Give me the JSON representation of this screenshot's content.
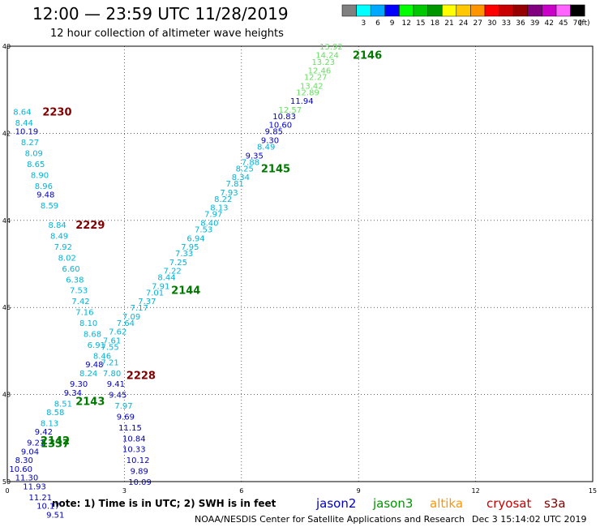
{
  "header": {
    "title": "12:00 — 23:59 UTC 11/28/2019",
    "subtitle": "12 hour collection of altimeter wave heights"
  },
  "scale": {
    "unit": "(ft)",
    "bins": [
      {
        "label": "",
        "color": "#808080"
      },
      {
        "label": "3",
        "color": "#00ffff"
      },
      {
        "label": "6",
        "color": "#00a8ff"
      },
      {
        "label": "9",
        "color": "#0000ff"
      },
      {
        "label": "12",
        "color": "#00ff00"
      },
      {
        "label": "15",
        "color": "#00c800"
      },
      {
        "label": "18",
        "color": "#009600"
      },
      {
        "label": "21",
        "color": "#ffff00"
      },
      {
        "label": "24",
        "color": "#ffc800"
      },
      {
        "label": "27",
        "color": "#ff9600"
      },
      {
        "label": "30",
        "color": "#ff0000"
      },
      {
        "label": "33",
        "color": "#c80000"
      },
      {
        "label": "36",
        "color": "#960000"
      },
      {
        "label": "39",
        "color": "#800080"
      },
      {
        "label": "42",
        "color": "#c800c8"
      },
      {
        "label": "45",
        "color": "#ff64ff"
      },
      {
        "label": "70",
        "color": "#000000"
      }
    ]
  },
  "grid": {
    "lon_labels": [
      "0",
      "3",
      "6",
      "9",
      "12",
      "15"
    ],
    "lat_labels": [
      "40",
      "42",
      "44",
      "46",
      "48",
      "50"
    ],
    "lon_range": [
      0,
      15
    ],
    "lat_range": [
      40,
      50
    ]
  },
  "colors": {
    "cyan": "#00b4d8",
    "blue": "#0000c0",
    "lightgreen": "#66e060",
    "green": "#007800",
    "darkred": "#800000"
  },
  "pass_labels": [
    {
      "text": "2146",
      "lon": 8.85,
      "lat": 40.2,
      "color": "green"
    },
    {
      "text": "2230",
      "lon": 0.9,
      "lat": 41.5,
      "color": "darkred"
    },
    {
      "text": "2145",
      "lon": 6.5,
      "lat": 42.8,
      "color": "green"
    },
    {
      "text": "2229",
      "lon": 1.75,
      "lat": 44.1,
      "color": "darkred"
    },
    {
      "text": "2144",
      "lon": 4.2,
      "lat": 45.6,
      "color": "green"
    },
    {
      "text": "2228",
      "lon": 3.05,
      "lat": 47.55,
      "color": "darkred"
    },
    {
      "text": "2143",
      "lon": 1.75,
      "lat": 48.15,
      "color": "green"
    },
    {
      "text": "2142",
      "lon": 0.85,
      "lat": 49.05,
      "color": "green"
    },
    {
      "text": "1337",
      "lon": 0.85,
      "lat": 49.12,
      "color": "green"
    }
  ],
  "observations": [
    {
      "text": "13.92",
      "lon": 8.0,
      "lat": 40.0,
      "color": "lightgreen"
    },
    {
      "text": "14.24",
      "lon": 7.9,
      "lat": 40.2,
      "color": "lightgreen"
    },
    {
      "text": "13.23",
      "lon": 7.8,
      "lat": 40.35,
      "color": "lightgreen"
    },
    {
      "text": "12.46",
      "lon": 7.7,
      "lat": 40.55,
      "color": "lightgreen"
    },
    {
      "text": "12.27",
      "lon": 7.6,
      "lat": 40.7,
      "color": "lightgreen"
    },
    {
      "text": "13.42",
      "lon": 7.5,
      "lat": 40.9,
      "color": "lightgreen"
    },
    {
      "text": "12.89",
      "lon": 7.4,
      "lat": 41.05,
      "color": "lightgreen"
    },
    {
      "text": "11.94",
      "lon": 7.25,
      "lat": 41.25,
      "color": "blue"
    },
    {
      "text": "12.57",
      "lon": 6.95,
      "lat": 41.45,
      "color": "lightgreen"
    },
    {
      "text": "10.83",
      "lon": 6.8,
      "lat": 41.6,
      "color": "blue"
    },
    {
      "text": "10.60",
      "lon": 6.7,
      "lat": 41.8,
      "color": "blue"
    },
    {
      "text": "9.85",
      "lon": 6.6,
      "lat": 41.95,
      "color": "blue"
    },
    {
      "text": "9.30",
      "lon": 6.5,
      "lat": 42.15,
      "color": "blue"
    },
    {
      "text": "8.49",
      "lon": 6.4,
      "lat": 42.3,
      "color": "cyan"
    },
    {
      "text": "9.35",
      "lon": 6.1,
      "lat": 42.5,
      "color": "blue"
    },
    {
      "text": "7.88",
      "lon": 6.0,
      "lat": 42.65,
      "color": "cyan"
    },
    {
      "text": "8.25",
      "lon": 5.85,
      "lat": 42.8,
      "color": "cyan"
    },
    {
      "text": "8.34",
      "lon": 5.75,
      "lat": 43.0,
      "color": "cyan"
    },
    {
      "text": "7.81",
      "lon": 5.6,
      "lat": 43.15,
      "color": "cyan"
    },
    {
      "text": "7.93",
      "lon": 5.45,
      "lat": 43.35,
      "color": "cyan"
    },
    {
      "text": "8.22",
      "lon": 5.3,
      "lat": 43.5,
      "color": "cyan"
    },
    {
      "text": "8.13",
      "lon": 5.2,
      "lat": 43.7,
      "color": "cyan"
    },
    {
      "text": "7.97",
      "lon": 5.05,
      "lat": 43.85,
      "color": "cyan"
    },
    {
      "text": "8.40",
      "lon": 4.95,
      "lat": 44.05,
      "color": "cyan"
    },
    {
      "text": "7.53",
      "lon": 4.8,
      "lat": 44.2,
      "color": "cyan"
    },
    {
      "text": "6.94",
      "lon": 4.6,
      "lat": 44.4,
      "color": "cyan"
    },
    {
      "text": "7.95",
      "lon": 4.45,
      "lat": 44.6,
      "color": "cyan"
    },
    {
      "text": "7.33",
      "lon": 4.3,
      "lat": 44.75,
      "color": "cyan"
    },
    {
      "text": "7.25",
      "lon": 4.15,
      "lat": 44.95,
      "color": "cyan"
    },
    {
      "text": "7.22",
      "lon": 4.0,
      "lat": 45.15,
      "color": "cyan"
    },
    {
      "text": "8.44",
      "lon": 3.85,
      "lat": 45.3,
      "color": "cyan"
    },
    {
      "text": "7.91",
      "lon": 3.7,
      "lat": 45.5,
      "color": "cyan"
    },
    {
      "text": "7.01",
      "lon": 3.55,
      "lat": 45.65,
      "color": "cyan"
    },
    {
      "text": "7.37",
      "lon": 3.35,
      "lat": 45.85,
      "color": "cyan"
    },
    {
      "text": "7.17",
      "lon": 3.15,
      "lat": 46.0,
      "color": "cyan"
    },
    {
      "text": "7.09",
      "lon": 2.95,
      "lat": 46.2,
      "color": "cyan"
    },
    {
      "text": "7.64",
      "lon": 2.8,
      "lat": 46.35,
      "color": "cyan"
    },
    {
      "text": "7.62",
      "lon": 2.6,
      "lat": 46.55,
      "color": "cyan"
    },
    {
      "text": "7.61",
      "lon": 2.45,
      "lat": 46.75,
      "color": "cyan"
    },
    {
      "text": "7.55",
      "lon": 2.4,
      "lat": 46.9,
      "color": "cyan"
    },
    {
      "text": "7.21",
      "lon": 2.4,
      "lat": 47.25,
      "color": "cyan"
    },
    {
      "text": "7.80",
      "lon": 2.45,
      "lat": 47.5,
      "color": "cyan"
    },
    {
      "text": "9.41",
      "lon": 2.55,
      "lat": 47.75,
      "color": "blue"
    },
    {
      "text": "9.45",
      "lon": 2.6,
      "lat": 48.0,
      "color": "blue"
    },
    {
      "text": "7.97",
      "lon": 2.75,
      "lat": 48.25,
      "color": "cyan"
    },
    {
      "text": "9.69",
      "lon": 2.8,
      "lat": 48.5,
      "color": "blue"
    },
    {
      "text": "11.15",
      "lon": 2.85,
      "lat": 48.75,
      "color": "blue"
    },
    {
      "text": "10.84",
      "lon": 2.95,
      "lat": 49.0,
      "color": "blue"
    },
    {
      "text": "10.33",
      "lon": 2.95,
      "lat": 49.25,
      "color": "blue"
    },
    {
      "text": "10.12",
      "lon": 3.05,
      "lat": 49.5,
      "color": "blue"
    },
    {
      "text": "9.89",
      "lon": 3.15,
      "lat": 49.75,
      "color": "blue"
    },
    {
      "text": "10.09",
      "lon": 3.1,
      "lat": 50.0,
      "color": "blue"
    },
    {
      "text": "8.64",
      "lon": 0.15,
      "lat": 41.5,
      "color": "cyan"
    },
    {
      "text": "8.44",
      "lon": 0.2,
      "lat": 41.75,
      "color": "cyan"
    },
    {
      "text": "10.19",
      "lon": 0.2,
      "lat": 41.95,
      "color": "blue"
    },
    {
      "text": "8.27",
      "lon": 0.35,
      "lat": 42.2,
      "color": "cyan"
    },
    {
      "text": "8.09",
      "lon": 0.45,
      "lat": 42.45,
      "color": "cyan"
    },
    {
      "text": "8.65",
      "lon": 0.5,
      "lat": 42.7,
      "color": "cyan"
    },
    {
      "text": "8.90",
      "lon": 0.6,
      "lat": 42.95,
      "color": "cyan"
    },
    {
      "text": "8.96",
      "lon": 0.7,
      "lat": 43.2,
      "color": "cyan"
    },
    {
      "text": "9.48",
      "lon": 0.75,
      "lat": 43.4,
      "color": "blue"
    },
    {
      "text": "8.59",
      "lon": 0.85,
      "lat": 43.65,
      "color": "cyan"
    },
    {
      "text": "8.84",
      "lon": 1.05,
      "lat": 44.1,
      "color": "cyan"
    },
    {
      "text": "8.49",
      "lon": 1.1,
      "lat": 44.35,
      "color": "cyan"
    },
    {
      "text": "7.92",
      "lon": 1.2,
      "lat": 44.6,
      "color": "cyan"
    },
    {
      "text": "8.02",
      "lon": 1.3,
      "lat": 44.85,
      "color": "cyan"
    },
    {
      "text": "6.60",
      "lon": 1.4,
      "lat": 45.1,
      "color": "cyan"
    },
    {
      "text": "6.38",
      "lon": 1.5,
      "lat": 45.35,
      "color": "cyan"
    },
    {
      "text": "7.53",
      "lon": 1.6,
      "lat": 45.6,
      "color": "cyan"
    },
    {
      "text": "7.42",
      "lon": 1.65,
      "lat": 45.85,
      "color": "cyan"
    },
    {
      "text": "7.16",
      "lon": 1.75,
      "lat": 46.1,
      "color": "cyan"
    },
    {
      "text": "8.10",
      "lon": 1.85,
      "lat": 46.35,
      "color": "cyan"
    },
    {
      "text": "8.68",
      "lon": 1.95,
      "lat": 46.6,
      "color": "cyan"
    },
    {
      "text": "6.91",
      "lon": 2.05,
      "lat": 46.85,
      "color": "cyan"
    },
    {
      "text": "8.46",
      "lon": 2.2,
      "lat": 47.1,
      "color": "cyan"
    },
    {
      "text": "9.48",
      "lon": 2.0,
      "lat": 47.3,
      "color": "blue"
    },
    {
      "text": "8.24",
      "lon": 1.85,
      "lat": 47.5,
      "color": "cyan"
    },
    {
      "text": "9.30",
      "lon": 1.6,
      "lat": 47.75,
      "color": "blue"
    },
    {
      "text": "9.34",
      "lon": 1.45,
      "lat": 47.95,
      "color": "blue"
    },
    {
      "text": "8.51",
      "lon": 1.2,
      "lat": 48.2,
      "color": "cyan"
    },
    {
      "text": "8.58",
      "lon": 1.0,
      "lat": 48.4,
      "color": "cyan"
    },
    {
      "text": "8.13",
      "lon": 0.85,
      "lat": 48.65,
      "color": "cyan"
    },
    {
      "text": "9.42",
      "lon": 0.7,
      "lat": 48.85,
      "color": "blue"
    },
    {
      "text": "9.21",
      "lon": 0.5,
      "lat": 49.1,
      "color": "blue"
    },
    {
      "text": "9.04",
      "lon": 0.35,
      "lat": 49.3,
      "color": "blue"
    },
    {
      "text": "8.30",
      "lon": 0.2,
      "lat": 49.5,
      "color": "blue"
    },
    {
      "text": "10.60",
      "lon": 0.05,
      "lat": 49.7,
      "color": "blue"
    },
    {
      "text": "11.30",
      "lon": 0.2,
      "lat": 49.9,
      "color": "blue"
    },
    {
      "text": "11.93",
      "lon": 0.4,
      "lat": 50.1,
      "color": "blue"
    },
    {
      "text": "11.21",
      "lon": 0.55,
      "lat": 50.35,
      "color": "blue"
    },
    {
      "text": "10.17",
      "lon": 0.75,
      "lat": 50.55,
      "color": "blue"
    },
    {
      "text": "9.51",
      "lon": 1.0,
      "lat": 50.75,
      "color": "blue"
    }
  ],
  "footer": {
    "note": "note:  1) Time is in UTC;  2) SWH is in feet",
    "missions": [
      {
        "text": "jason2",
        "color": "#0000c8"
      },
      {
        "text": "jason3",
        "color": "#009600"
      },
      {
        "text": "altika",
        "color": "#ff9600"
      },
      {
        "text": "cryosat",
        "color": "#c80000"
      },
      {
        "text": "s3a",
        "color": "#800000"
      }
    ],
    "credit": "NOAA/NESDIS Center for Satellite Applications and Research",
    "timestamp": "Dec  3 15:14:02 UTC 2019"
  }
}
